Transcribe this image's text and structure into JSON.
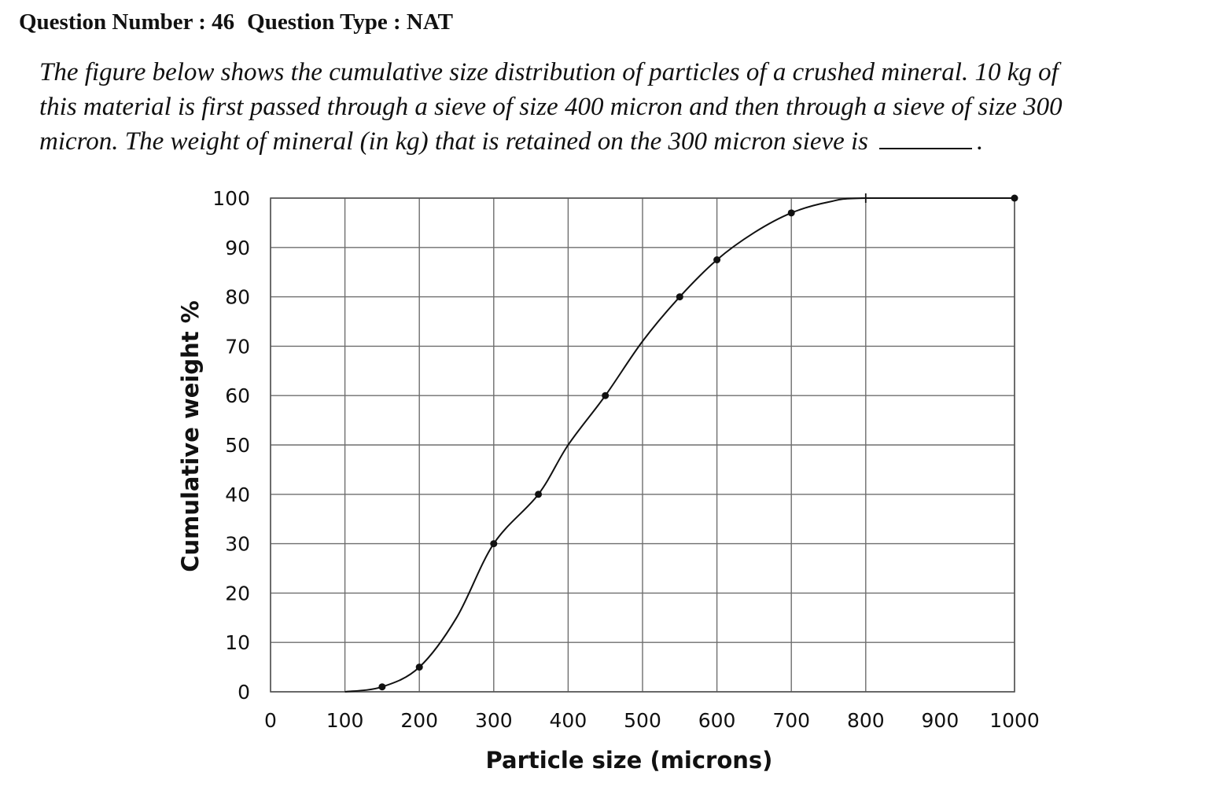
{
  "header": {
    "question_number": "Question Number : 46",
    "question_type": "Question Type : NAT"
  },
  "question": {
    "lines": [
      "The figure below shows the cumulative size distribution of particles of a crushed mineral.   10 kg of",
      "this material is first passed through a sieve of size 400 micron and then through a sieve of size 300",
      "micron. The weight of mineral (in kg) that is retained on the 300 micron sieve is"
    ],
    "end": "."
  },
  "chart_data": {
    "type": "line",
    "xlabel": "Particle size (microns)",
    "ylabel": "Cumulative weight %",
    "xlim": [
      0,
      1000
    ],
    "ylim": [
      0,
      100
    ],
    "x_ticks": [
      0,
      100,
      200,
      300,
      400,
      500,
      600,
      700,
      800,
      900,
      1000
    ],
    "y_ticks": [
      0,
      10,
      20,
      30,
      40,
      50,
      60,
      70,
      80,
      90,
      100
    ],
    "x_grid": [
      0,
      100,
      200,
      300,
      400,
      500,
      600,
      700,
      800,
      1000
    ],
    "grid": true,
    "series": [
      {
        "curve": [
          [
            100,
            0
          ],
          [
            150,
            1
          ],
          [
            200,
            5
          ],
          [
            250,
            15
          ],
          [
            300,
            30
          ],
          [
            360,
            40
          ],
          [
            400,
            50
          ],
          [
            450,
            60
          ],
          [
            500,
            71
          ],
          [
            550,
            80
          ],
          [
            600,
            87.5
          ],
          [
            650,
            93
          ],
          [
            700,
            97
          ],
          [
            750,
            99.2
          ],
          [
            800,
            100
          ],
          [
            1000,
            100
          ]
        ],
        "markers": [
          [
            150,
            1
          ],
          [
            200,
            5
          ],
          [
            300,
            30
          ],
          [
            360,
            40
          ],
          [
            450,
            60
          ],
          [
            550,
            80
          ],
          [
            600,
            87.5
          ],
          [
            700,
            97
          ],
          [
            1000,
            100
          ]
        ],
        "cross_markers": [
          [
            800,
            100
          ]
        ]
      }
    ]
  }
}
